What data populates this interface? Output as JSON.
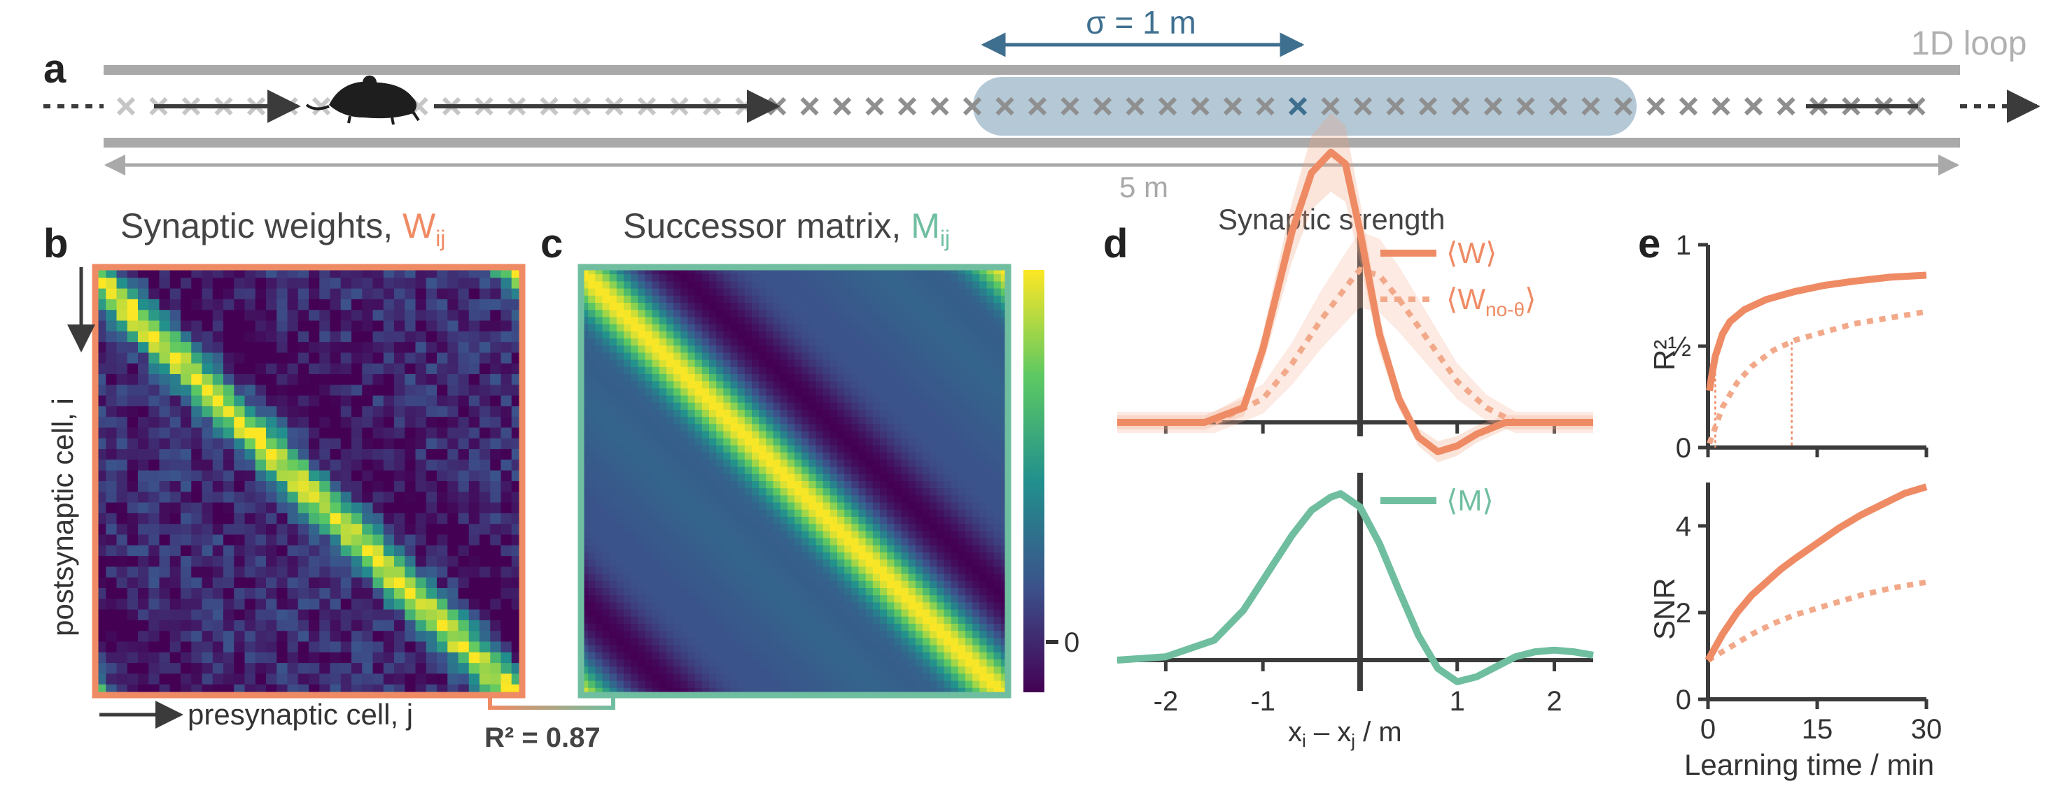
{
  "colors": {
    "W": "#ef8b64",
    "M": "#6fbea0",
    "blue": "#3f6f8f",
    "gray": "#a9a9a9",
    "dark": "#3b3b3b",
    "band": "#b5c8d6"
  },
  "panel_a": {
    "label": "a",
    "loop_label": "1D loop",
    "sigma_label": "σ = 1 m",
    "length_label": "5 m",
    "icons": [
      "mouse-icon"
    ]
  },
  "panel_b": {
    "label": "b",
    "title": "Synaptic weights, ",
    "title_sym": "W",
    "title_sub": "ij",
    "ylabel": "postsynaptic cell, i",
    "xlabel": "presynaptic cell, j",
    "r2_text": "R² = 0.87"
  },
  "panel_c": {
    "label": "c",
    "title": "Successor matrix, ",
    "title_sym": "M",
    "title_sub": "ij",
    "colorbar_tick": "0"
  },
  "panel_d": {
    "label": "d",
    "title": "Synaptic strength",
    "legend_W": "⟨W⟩",
    "legend_Wno_pre": "⟨W",
    "legend_Wno_sub": "no-θ",
    "legend_Wno_post": "⟩",
    "legend_M": "⟨M⟩",
    "xlabel_a": "x",
    "xlabel_a_sub": "i",
    "xlabel_mid": " – x",
    "xlabel_b_sub": "j",
    "xlabel_end": " / m",
    "xticks": [
      "-2",
      "-1",
      "0",
      "1",
      "2"
    ]
  },
  "panel_e": {
    "label": "e",
    "ylabel_top": "R²",
    "ylabel_bottom": "SNR",
    "yticks_top": [
      "0",
      "½",
      "1"
    ],
    "yticks_bottom": [
      "0",
      "2",
      "4"
    ],
    "xticks": [
      "0",
      "15",
      "30"
    ],
    "xlabel": "Learning time / min"
  },
  "chart_data": [
    {
      "type": "line",
      "title": "Synaptic strength",
      "xlabel": "xi – xj / m",
      "xlim": [
        -2.5,
        2.4
      ],
      "series": [
        {
          "name": "⟨W⟩",
          "x": [
            -2.5,
            -1.6,
            -1.2,
            -1.0,
            -0.7,
            -0.5,
            -0.3,
            -0.15,
            0.0,
            0.2,
            0.4,
            0.6,
            0.8,
            1.0,
            1.2,
            1.5,
            2.4
          ],
          "y": [
            0.0,
            0.0,
            0.05,
            0.25,
            0.65,
            0.85,
            0.92,
            0.88,
            0.65,
            0.3,
            0.08,
            -0.05,
            -0.1,
            -0.08,
            -0.04,
            0.0,
            0.0
          ]
        },
        {
          "name": "⟨Wno-θ⟩",
          "x": [
            -2.5,
            -1.5,
            -1.0,
            -0.7,
            -0.4,
            -0.1,
            0.0,
            0.2,
            0.4,
            0.7,
            1.0,
            1.3,
            1.6,
            2.4
          ],
          "y": [
            0.0,
            0.0,
            0.08,
            0.2,
            0.35,
            0.48,
            0.52,
            0.5,
            0.42,
            0.28,
            0.14,
            0.05,
            0.0,
            0.0
          ]
        },
        {
          "name": "⟨M⟩",
          "x": [
            -2.5,
            -2.0,
            -1.5,
            -1.2,
            -1.0,
            -0.7,
            -0.5,
            -0.3,
            -0.2,
            0.0,
            0.2,
            0.4,
            0.6,
            0.8,
            1.0,
            1.2,
            1.4,
            1.6,
            1.8,
            2.0,
            2.2,
            2.4
          ],
          "y": [
            0.0,
            0.02,
            0.12,
            0.3,
            0.48,
            0.75,
            0.9,
            0.98,
            1.0,
            0.92,
            0.7,
            0.42,
            0.15,
            -0.05,
            -0.13,
            -0.1,
            -0.04,
            0.02,
            0.05,
            0.06,
            0.05,
            0.03
          ]
        }
      ]
    },
    {
      "type": "line",
      "xlabel": "Learning time / min",
      "ylabel": "R²",
      "xlim": [
        0,
        30
      ],
      "ylim": [
        0,
        1
      ],
      "series": [
        {
          "name": "⟨W⟩",
          "x": [
            0.2,
            0.5,
            1,
            2,
            3,
            5,
            8,
            12,
            16,
            20,
            25,
            30
          ],
          "y": [
            0.28,
            0.35,
            0.45,
            0.56,
            0.62,
            0.68,
            0.73,
            0.77,
            0.8,
            0.82,
            0.84,
            0.85
          ]
        },
        {
          "name": "⟨Wno-θ⟩",
          "x": [
            0.2,
            1,
            2,
            4,
            6,
            9,
            12,
            16,
            20,
            25,
            30
          ],
          "y": [
            0.02,
            0.1,
            0.2,
            0.32,
            0.4,
            0.48,
            0.53,
            0.57,
            0.61,
            0.64,
            0.67
          ]
        }
      ],
      "markers": [
        {
          "series": "⟨W⟩",
          "x": 1.0
        },
        {
          "series": "⟨Wno-θ⟩",
          "x": 11.5
        }
      ]
    },
    {
      "type": "line",
      "xlabel": "Learning time / min",
      "ylabel": "SNR",
      "xlim": [
        0,
        30
      ],
      "ylim": [
        0,
        5
      ],
      "series": [
        {
          "name": "⟨W⟩",
          "x": [
            0,
            1,
            2,
            4,
            6,
            8,
            10,
            12,
            15,
            18,
            21,
            24,
            27,
            30
          ],
          "y": [
            0.9,
            1.2,
            1.5,
            2.0,
            2.4,
            2.7,
            3.0,
            3.25,
            3.6,
            3.95,
            4.25,
            4.5,
            4.75,
            4.9
          ]
        },
        {
          "name": "⟨Wno-θ⟩",
          "x": [
            0,
            2,
            4,
            6,
            9,
            12,
            15,
            18,
            21,
            24,
            27,
            30
          ],
          "y": [
            0.9,
            1.1,
            1.3,
            1.5,
            1.75,
            1.95,
            2.1,
            2.25,
            2.4,
            2.52,
            2.62,
            2.7
          ]
        }
      ]
    }
  ]
}
